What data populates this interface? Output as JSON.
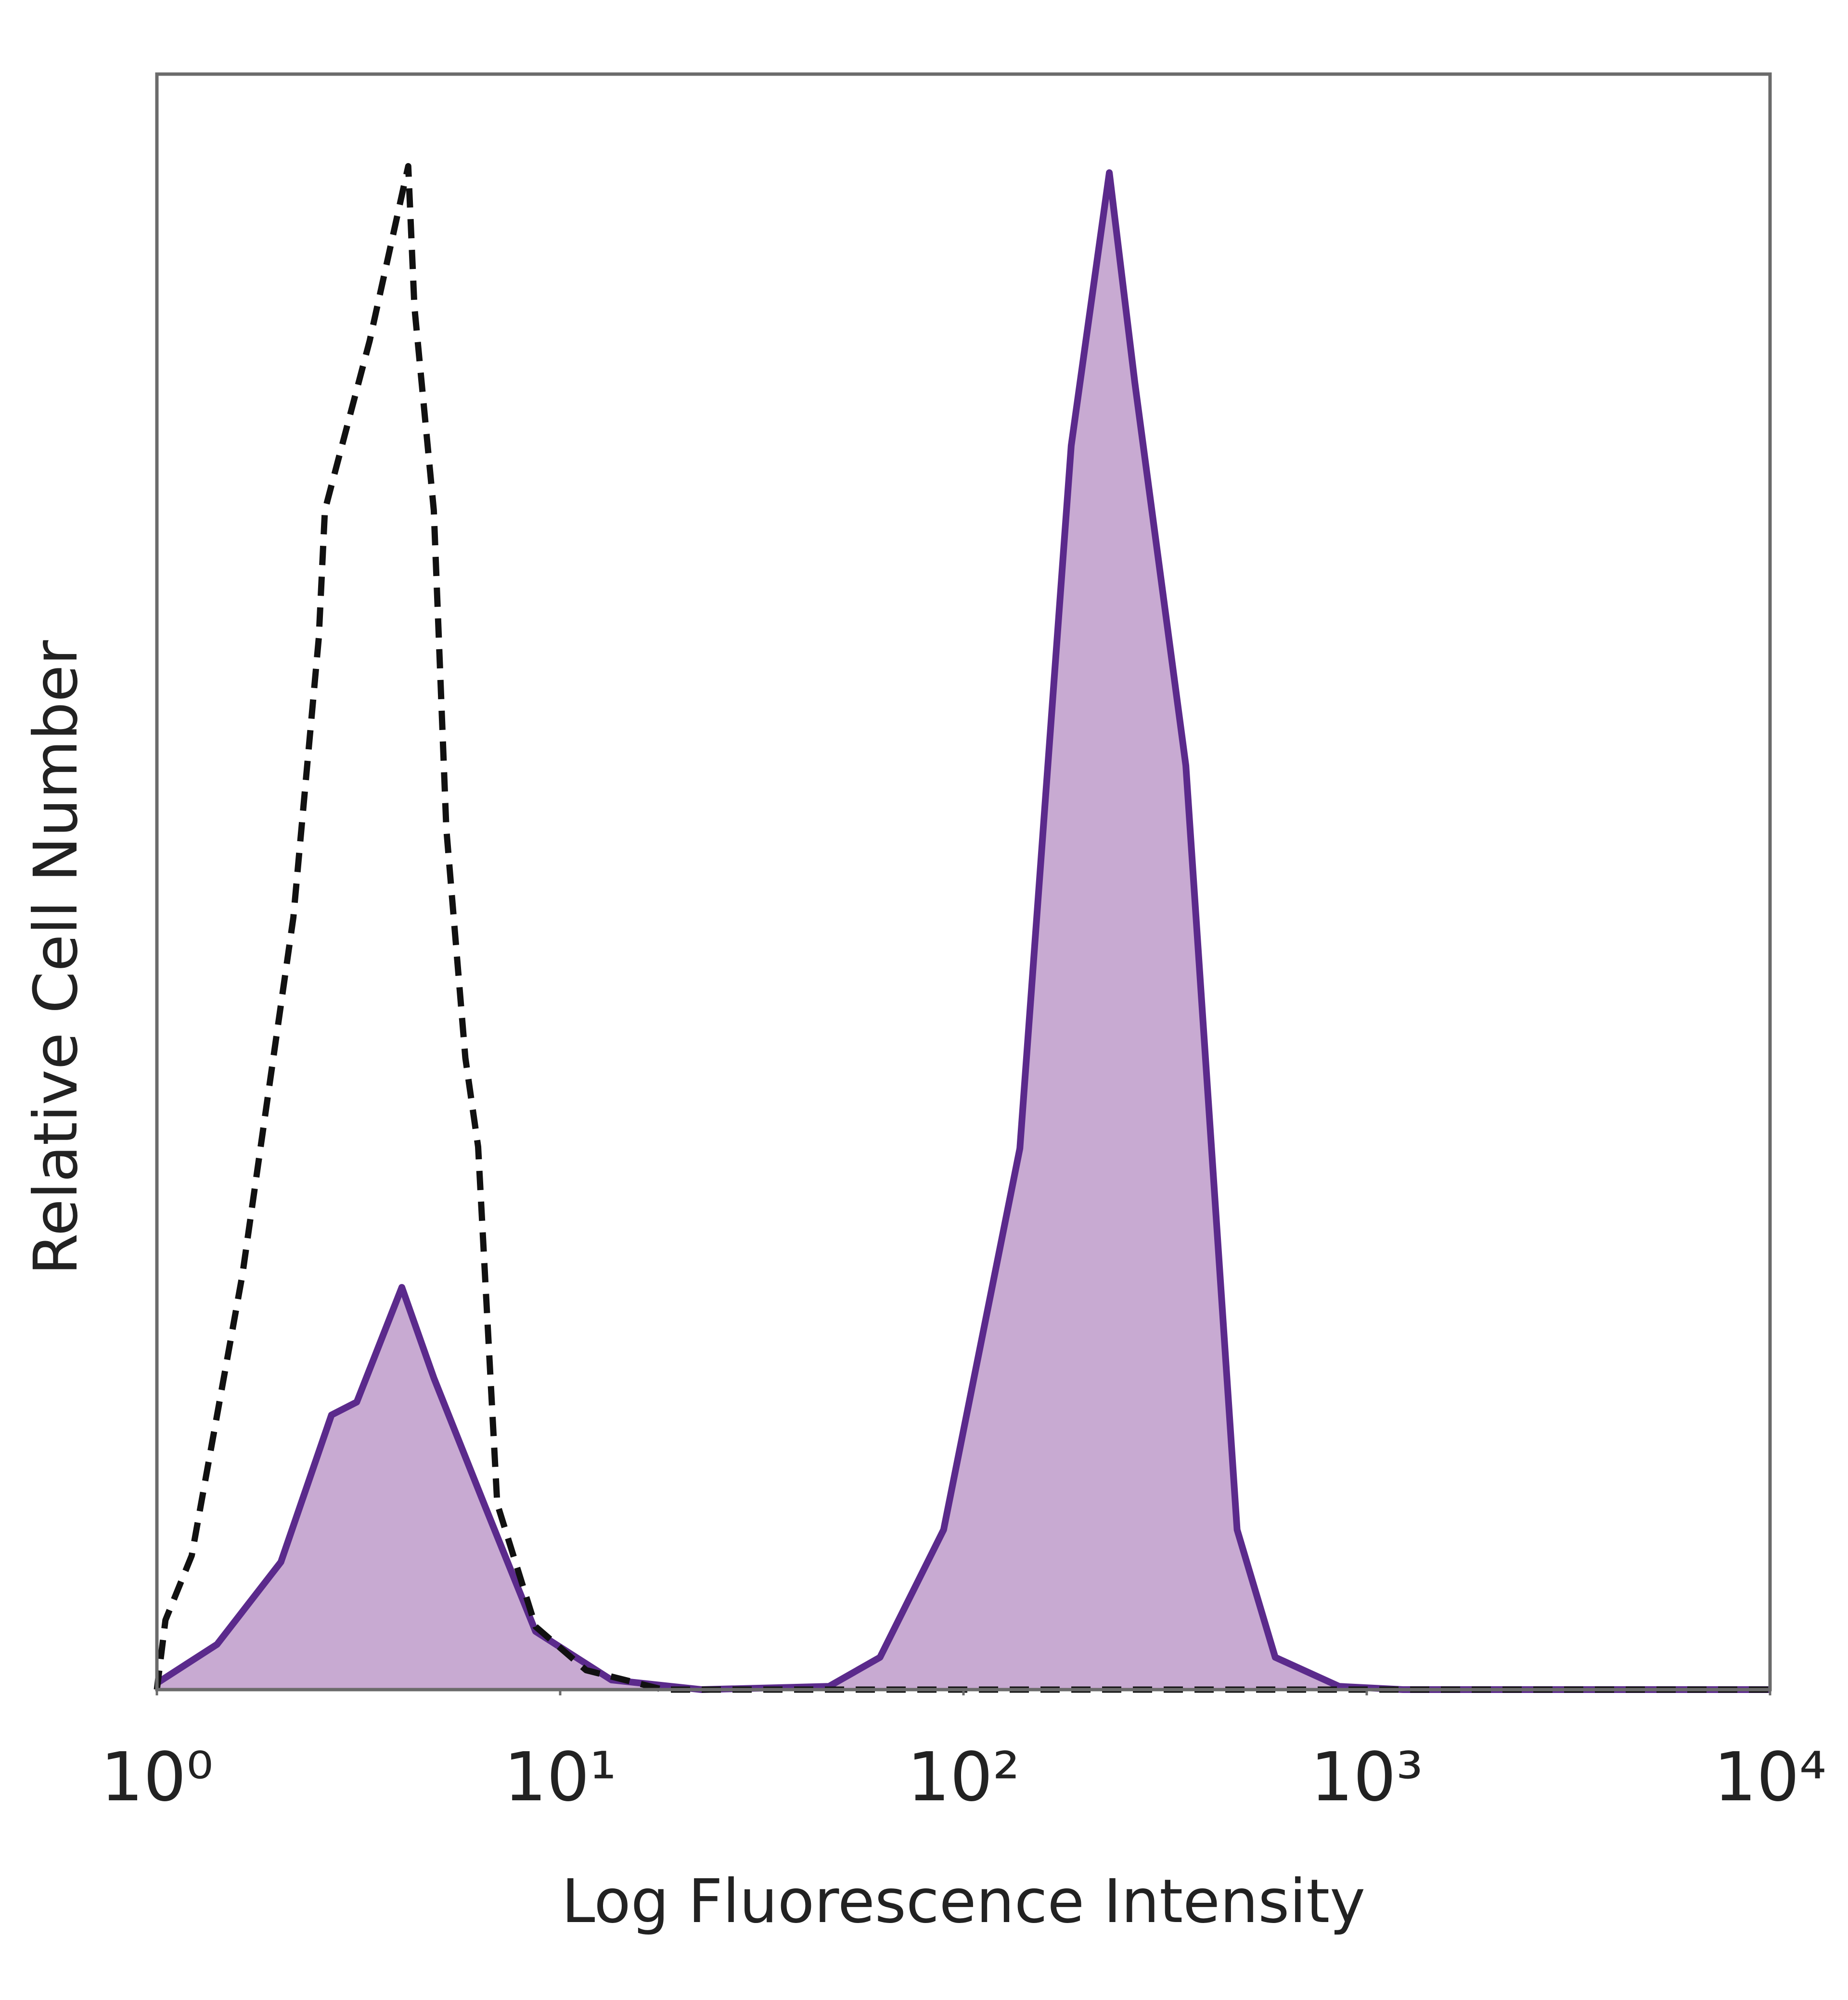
{
  "chart_data": {
    "type": "line",
    "xlabel": "Log Fluorescence Intensity",
    "ylabel": "Relative Cell Number",
    "xscale": "log",
    "xlim": [
      1,
      10000
    ],
    "xticks": [
      {
        "value": 1,
        "label": "10⁰"
      },
      {
        "value": 10,
        "label": "10¹"
      },
      {
        "value": 100,
        "label": "10²"
      },
      {
        "value": 1000,
        "label": "10³"
      },
      {
        "value": 10000,
        "label": "10⁴"
      }
    ],
    "ylim": [
      0,
      100
    ],
    "grid": false,
    "series": [
      {
        "color": "#5b2a8c",
        "fill": "#c8aad2",
        "dashed": false,
        "x": [
          1,
          1.41,
          2.03,
          2.71,
          3.13,
          4.05,
          4.86,
          6.5,
          8.69,
          13.4,
          22.4,
          46.4,
          62.1,
          89.3,
          138,
          185,
          230,
          266,
          356,
          477,
          593,
          854,
          1230,
          10000
        ],
        "values": [
          0.4,
          2.8,
          7.9,
          17.0,
          17.8,
          24.9,
          19.3,
          11.4,
          3.6,
          0.6,
          0,
          0.2,
          2.0,
          9.9,
          33.5,
          77.0,
          93.9,
          80.9,
          57.2,
          9.9,
          2.0,
          0.2,
          0,
          0
        ]
      },
      {
        "color": "#111111",
        "dashed": true,
        "x": [
          1,
          1.05,
          1.22,
          1.63,
          2.18,
          2.52,
          2.61,
          3.37,
          4.2,
          4.35,
          4.86,
          5.22,
          5.82,
          6.26,
          6.98,
          8.69,
          11.6,
          18.0,
          10000
        ],
        "values": [
          0,
          4.3,
          8.3,
          25.7,
          47.8,
          65.1,
          73.0,
          83.5,
          94.3,
          85.6,
          73.0,
          53.3,
          39.1,
          33.6,
          11.5,
          3.9,
          1.2,
          0,
          0
        ]
      }
    ]
  }
}
